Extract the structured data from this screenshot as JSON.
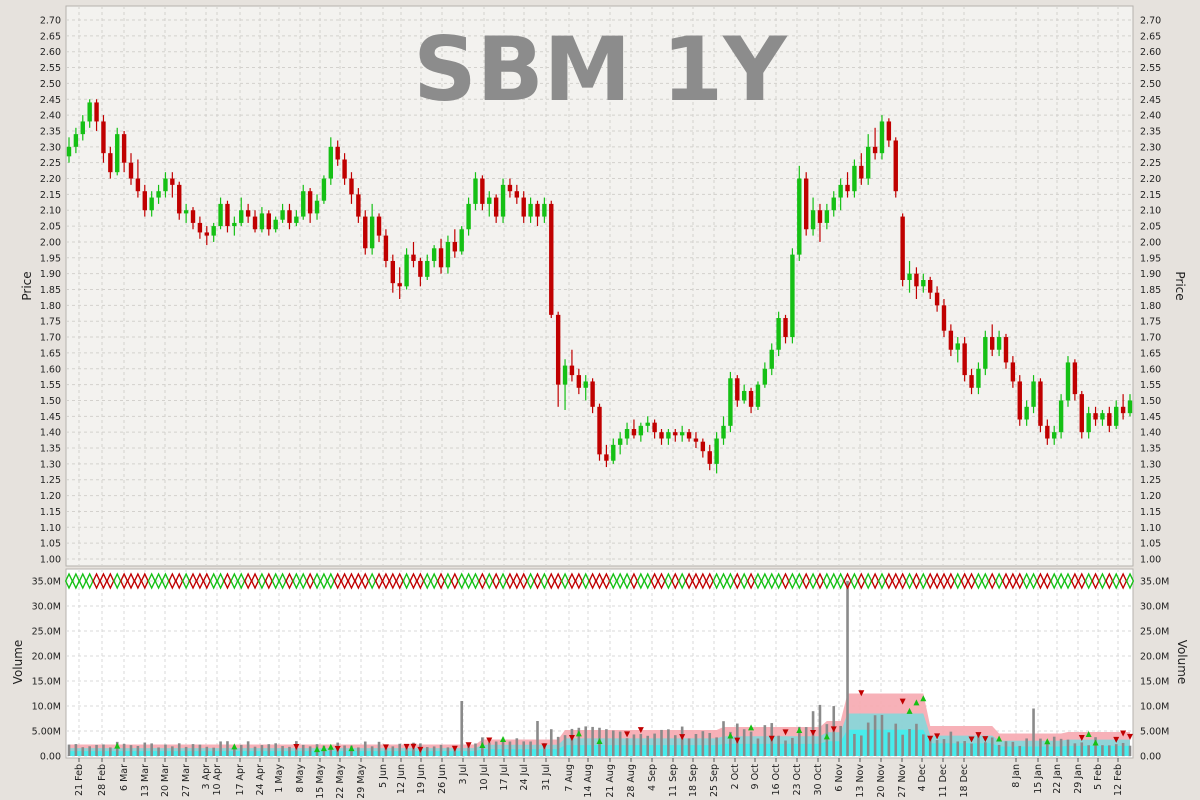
{
  "title": "SBM 1Y",
  "colors": {
    "background": "#e6e2dd",
    "plot_background": "#f3f2ef",
    "volume_background": "#ffffff",
    "up": "#15c015",
    "down": "#c00000",
    "neutral": "#000000",
    "volume_bar": "#8a8a8a",
    "volume_band_outer": "#f6a8b0",
    "volume_band_inner": "#3cf0f0",
    "title": "#8c8c8c"
  },
  "chart_data": [
    {
      "type": "ohlc",
      "name": "price",
      "ylabel": "Price",
      "ylim": [
        1.0,
        2.7
      ],
      "ytick_step": 0.05,
      "grid": true,
      "x_tick_labels": [
        "21 Feb",
        "28 Feb",
        "6 Mar",
        "13 Mar",
        "20 Mar",
        "27 Mar",
        "3 Apr",
        "10 Apr",
        "17 Apr",
        "24 Apr",
        "1 May",
        "8 May",
        "15 May",
        "22 May",
        "29 May",
        "5 Jun",
        "12 Jun",
        "19 Jun",
        "26 Jun",
        "3 Jul",
        "10 Jul",
        "17 Jul",
        "24 Jul",
        "31 Jul",
        "7 Aug",
        "14 Aug",
        "21 Aug",
        "28 Aug",
        "4 Sep",
        "11 Sep",
        "18 Sep",
        "25 Sep",
        "2 Oct",
        "9 Oct",
        "16 Oct",
        "23 Oct",
        "30 Oct",
        "6 Nov",
        "13 Nov",
        "20 Nov",
        "27 Nov",
        "4 Dec",
        "11 Dec",
        "18 Dec",
        "8 Jan",
        "15 Jan",
        "22 Jan",
        "29 Jan",
        "5 Feb",
        "12 Feb"
      ],
      "x_tick_positions": [
        79,
        102,
        124,
        145,
        165,
        186,
        206,
        217,
        240,
        260,
        279,
        300,
        320,
        340,
        361,
        383,
        401,
        421,
        442,
        463,
        484,
        504,
        524,
        546,
        569,
        588,
        610,
        631,
        652,
        673,
        693,
        714,
        735,
        755,
        776,
        797,
        818,
        839,
        860,
        881,
        902,
        922,
        943,
        964,
        1016,
        1038,
        1057,
        1078,
        1098,
        1118
      ],
      "ohlc": [
        [
          2.27,
          2.33,
          2.25,
          2.3
        ],
        [
          2.3,
          2.36,
          2.28,
          2.34
        ],
        [
          2.34,
          2.4,
          2.32,
          2.38
        ],
        [
          2.38,
          2.45,
          2.36,
          2.44
        ],
        [
          2.44,
          2.45,
          2.35,
          2.38
        ],
        [
          2.38,
          2.4,
          2.25,
          2.28
        ],
        [
          2.28,
          2.3,
          2.2,
          2.22
        ],
        [
          2.22,
          2.36,
          2.21,
          2.34
        ],
        [
          2.34,
          2.35,
          2.22,
          2.25
        ],
        [
          2.25,
          2.28,
          2.18,
          2.2
        ],
        [
          2.2,
          2.26,
          2.14,
          2.16
        ],
        [
          2.16,
          2.18,
          2.08,
          2.1
        ],
        [
          2.1,
          2.16,
          2.08,
          2.14
        ],
        [
          2.14,
          2.18,
          2.12,
          2.16
        ],
        [
          2.16,
          2.22,
          2.14,
          2.2
        ],
        [
          2.2,
          2.22,
          2.14,
          2.18
        ],
        [
          2.18,
          2.19,
          2.07,
          2.09
        ],
        [
          2.09,
          2.12,
          2.06,
          2.1
        ],
        [
          2.1,
          2.11,
          2.04,
          2.06
        ],
        [
          2.06,
          2.08,
          2.01,
          2.03
        ],
        [
          2.03,
          2.05,
          1.99,
          2.02
        ],
        [
          2.02,
          2.06,
          2.0,
          2.05
        ],
        [
          2.05,
          2.14,
          2.04,
          2.12
        ],
        [
          2.12,
          2.13,
          2.03,
          2.05
        ],
        [
          2.05,
          2.08,
          2.02,
          2.06
        ],
        [
          2.06,
          2.14,
          2.05,
          2.1
        ],
        [
          2.1,
          2.12,
          2.06,
          2.08
        ],
        [
          2.08,
          2.1,
          2.03,
          2.04
        ],
        [
          2.04,
          2.11,
          2.03,
          2.09
        ],
        [
          2.09,
          2.1,
          2.02,
          2.04
        ],
        [
          2.04,
          2.08,
          2.03,
          2.07
        ],
        [
          2.07,
          2.12,
          2.06,
          2.1
        ],
        [
          2.1,
          2.12,
          2.04,
          2.06
        ],
        [
          2.06,
          2.1,
          2.05,
          2.08
        ],
        [
          2.08,
          2.18,
          2.07,
          2.16
        ],
        [
          2.16,
          2.17,
          2.06,
          2.09
        ],
        [
          2.09,
          2.15,
          2.07,
          2.13
        ],
        [
          2.13,
          2.21,
          2.12,
          2.2
        ],
        [
          2.2,
          2.33,
          2.18,
          2.3
        ],
        [
          2.3,
          2.32,
          2.24,
          2.26
        ],
        [
          2.26,
          2.28,
          2.18,
          2.2
        ],
        [
          2.2,
          2.22,
          2.12,
          2.15
        ],
        [
          2.15,
          2.17,
          2.06,
          2.08
        ],
        [
          2.08,
          2.1,
          1.96,
          1.98
        ],
        [
          1.98,
          2.12,
          1.96,
          2.08
        ],
        [
          2.08,
          2.09,
          2.0,
          2.02
        ],
        [
          2.02,
          2.04,
          1.92,
          1.94
        ],
        [
          1.94,
          1.96,
          1.84,
          1.87
        ],
        [
          1.87,
          1.92,
          1.82,
          1.86
        ],
        [
          1.86,
          1.98,
          1.85,
          1.96
        ],
        [
          1.96,
          2.0,
          1.92,
          1.94
        ],
        [
          1.94,
          1.95,
          1.86,
          1.89
        ],
        [
          1.89,
          1.96,
          1.88,
          1.94
        ],
        [
          1.94,
          1.99,
          1.92,
          1.98
        ],
        [
          1.98,
          2.01,
          1.9,
          1.92
        ],
        [
          1.92,
          2.02,
          1.9,
          2.0
        ],
        [
          2.0,
          2.04,
          1.95,
          1.97
        ],
        [
          1.97,
          2.05,
          1.96,
          2.04
        ],
        [
          2.04,
          2.14,
          2.02,
          2.12
        ],
        [
          2.12,
          2.22,
          2.1,
          2.2
        ],
        [
          2.2,
          2.21,
          2.1,
          2.12
        ],
        [
          2.12,
          2.16,
          2.08,
          2.14
        ],
        [
          2.14,
          2.15,
          2.06,
          2.08
        ],
        [
          2.08,
          2.2,
          2.06,
          2.18
        ],
        [
          2.18,
          2.2,
          2.14,
          2.16
        ],
        [
          2.16,
          2.18,
          2.12,
          2.14
        ],
        [
          2.14,
          2.16,
          2.06,
          2.08
        ],
        [
          2.08,
          2.14,
          2.06,
          2.12
        ],
        [
          2.12,
          2.13,
          2.05,
          2.08
        ],
        [
          2.08,
          2.14,
          2.06,
          2.12
        ],
        [
          2.12,
          2.13,
          1.76,
          1.77
        ],
        [
          1.77,
          1.78,
          1.48,
          1.55
        ],
        [
          1.55,
          1.63,
          1.47,
          1.61
        ],
        [
          1.61,
          1.66,
          1.56,
          1.58
        ],
        [
          1.58,
          1.6,
          1.52,
          1.54
        ],
        [
          1.54,
          1.58,
          1.5,
          1.56
        ],
        [
          1.56,
          1.57,
          1.46,
          1.48
        ],
        [
          1.48,
          1.49,
          1.31,
          1.33
        ],
        [
          1.33,
          1.36,
          1.29,
          1.31
        ],
        [
          1.31,
          1.38,
          1.3,
          1.36
        ],
        [
          1.36,
          1.4,
          1.33,
          1.38
        ],
        [
          1.38,
          1.43,
          1.36,
          1.41
        ],
        [
          1.41,
          1.44,
          1.38,
          1.39
        ],
        [
          1.39,
          1.43,
          1.37,
          1.42
        ],
        [
          1.42,
          1.45,
          1.4,
          1.43
        ],
        [
          1.43,
          1.44,
          1.38,
          1.4
        ],
        [
          1.4,
          1.41,
          1.36,
          1.38
        ],
        [
          1.38,
          1.41,
          1.36,
          1.4
        ],
        [
          1.4,
          1.41,
          1.37,
          1.39
        ],
        [
          1.39,
          1.42,
          1.37,
          1.4
        ],
        [
          1.4,
          1.41,
          1.37,
          1.38
        ],
        [
          1.38,
          1.4,
          1.35,
          1.37
        ],
        [
          1.37,
          1.38,
          1.32,
          1.34
        ],
        [
          1.34,
          1.36,
          1.28,
          1.3
        ],
        [
          1.3,
          1.4,
          1.27,
          1.38
        ],
        [
          1.38,
          1.45,
          1.36,
          1.42
        ],
        [
          1.42,
          1.59,
          1.4,
          1.57
        ],
        [
          1.57,
          1.58,
          1.48,
          1.5
        ],
        [
          1.5,
          1.55,
          1.49,
          1.53
        ],
        [
          1.53,
          1.54,
          1.46,
          1.48
        ],
        [
          1.48,
          1.56,
          1.47,
          1.55
        ],
        [
          1.55,
          1.62,
          1.54,
          1.6
        ],
        [
          1.6,
          1.68,
          1.58,
          1.66
        ],
        [
          1.66,
          1.78,
          1.64,
          1.76
        ],
        [
          1.76,
          1.77,
          1.68,
          1.7
        ],
        [
          1.7,
          1.98,
          1.68,
          1.96
        ],
        [
          1.96,
          2.24,
          1.94,
          2.2
        ],
        [
          2.2,
          2.22,
          2.02,
          2.04
        ],
        [
          2.04,
          2.14,
          2.02,
          2.1
        ],
        [
          2.1,
          2.12,
          2.0,
          2.06
        ],
        [
          2.06,
          2.12,
          2.04,
          2.1
        ],
        [
          2.1,
          2.16,
          2.08,
          2.14
        ],
        [
          2.14,
          2.2,
          2.1,
          2.18
        ],
        [
          2.18,
          2.22,
          2.14,
          2.16
        ],
        [
          2.16,
          2.26,
          2.14,
          2.24
        ],
        [
          2.24,
          2.28,
          2.18,
          2.2
        ],
        [
          2.2,
          2.34,
          2.18,
          2.3
        ],
        [
          2.3,
          2.36,
          2.26,
          2.28
        ],
        [
          2.28,
          2.4,
          2.26,
          2.38
        ],
        [
          2.38,
          2.39,
          2.3,
          2.32
        ],
        [
          2.32,
          2.33,
          2.14,
          2.16
        ],
        [
          2.08,
          2.09,
          1.86,
          1.88
        ],
        [
          1.88,
          1.94,
          1.84,
          1.9
        ],
        [
          1.9,
          1.92,
          1.82,
          1.86
        ],
        [
          1.86,
          1.9,
          1.84,
          1.88
        ],
        [
          1.88,
          1.89,
          1.82,
          1.84
        ],
        [
          1.84,
          1.86,
          1.78,
          1.8
        ],
        [
          1.8,
          1.82,
          1.7,
          1.72
        ],
        [
          1.72,
          1.74,
          1.64,
          1.66
        ],
        [
          1.66,
          1.7,
          1.62,
          1.68
        ],
        [
          1.68,
          1.7,
          1.56,
          1.58
        ],
        [
          1.58,
          1.6,
          1.52,
          1.54
        ],
        [
          1.54,
          1.62,
          1.52,
          1.6
        ],
        [
          1.6,
          1.72,
          1.58,
          1.7
        ],
        [
          1.7,
          1.74,
          1.64,
          1.66
        ],
        [
          1.66,
          1.72,
          1.64,
          1.7
        ],
        [
          1.7,
          1.71,
          1.6,
          1.62
        ],
        [
          1.62,
          1.64,
          1.54,
          1.56
        ],
        [
          1.56,
          1.58,
          1.42,
          1.44
        ],
        [
          1.44,
          1.5,
          1.42,
          1.48
        ],
        [
          1.48,
          1.58,
          1.46,
          1.56
        ],
        [
          1.56,
          1.57,
          1.4,
          1.42
        ],
        [
          1.42,
          1.44,
          1.36,
          1.38
        ],
        [
          1.38,
          1.42,
          1.36,
          1.4
        ],
        [
          1.4,
          1.52,
          1.38,
          1.5
        ],
        [
          1.5,
          1.64,
          1.48,
          1.62
        ],
        [
          1.62,
          1.63,
          1.5,
          1.52
        ],
        [
          1.52,
          1.53,
          1.38,
          1.4
        ],
        [
          1.4,
          1.48,
          1.38,
          1.46
        ],
        [
          1.46,
          1.48,
          1.42,
          1.44
        ],
        [
          1.44,
          1.47,
          1.42,
          1.46
        ],
        [
          1.46,
          1.48,
          1.4,
          1.42
        ],
        [
          1.42,
          1.5,
          1.41,
          1.48
        ],
        [
          1.48,
          1.52,
          1.44,
          1.46
        ],
        [
          1.46,
          1.52,
          1.45,
          1.5
        ]
      ]
    },
    {
      "type": "bar",
      "name": "volume",
      "ylabel": "Volume",
      "ylim": [
        0,
        37000000
      ],
      "ytick_labels": [
        "0.00",
        "5.00M",
        "10.0M",
        "15.0M",
        "20.0M",
        "25.0M",
        "30.0M",
        "35.0M"
      ],
      "ytick_values": [
        0,
        5000000,
        10000000,
        15000000,
        20000000,
        25000000,
        30000000,
        35000000
      ],
      "grid": true,
      "peak_volume": 35000000,
      "peak_index": 113
    }
  ]
}
